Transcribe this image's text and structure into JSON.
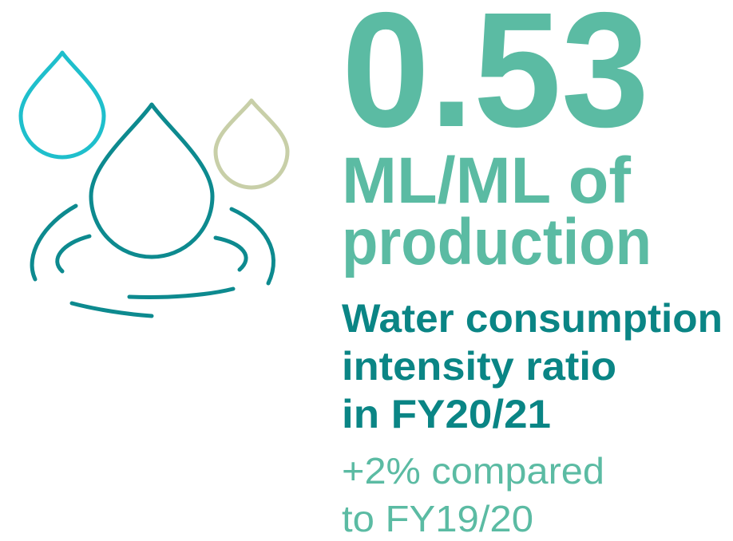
{
  "stat": {
    "value": "0.53",
    "unit": [
      "ML/ML of",
      "production"
    ]
  },
  "description": [
    "Water consumption",
    "intensity ratio",
    "in FY20/21"
  ],
  "comparison": [
    "+2% compared",
    "to FY19/20"
  ]
}
